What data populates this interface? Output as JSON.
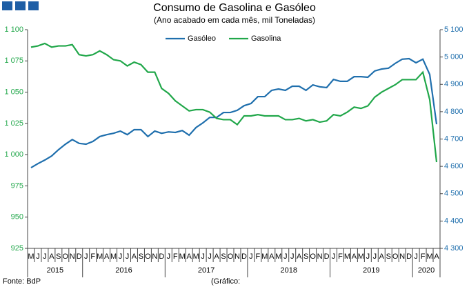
{
  "chart_data": {
    "type": "line",
    "title": "Consumo de Gasolina e Gasóleo",
    "subtitle": "(Ano acabado em cada mês,  mil Toneladas)",
    "categories": [
      "M",
      "J",
      "J",
      "A",
      "S",
      "O",
      "N",
      "D",
      "J",
      "F",
      "M",
      "A",
      "M",
      "J",
      "J",
      "A",
      "S",
      "O",
      "N",
      "D",
      "J",
      "F",
      "M",
      "A",
      "M",
      "J",
      "J",
      "A",
      "S",
      "O",
      "N",
      "D",
      "J",
      "F",
      "M",
      "A",
      "M",
      "J",
      "J",
      "A",
      "S",
      "O",
      "N",
      "D",
      "J",
      "F",
      "M",
      "A",
      "M",
      "J",
      "J",
      "A",
      "S",
      "O",
      "N",
      "D",
      "J",
      "F",
      "M",
      "A"
    ],
    "years": [
      "2015",
      "2016",
      "2017",
      "2018",
      "2019",
      "2020"
    ],
    "series": [
      {
        "name": "Gasóleo",
        "color": "#1f6fad",
        "axis": "y2",
        "values": [
          4595,
          4610,
          4623,
          4638,
          4661,
          4681,
          4698,
          4684,
          4681,
          4691,
          4709,
          4716,
          4721,
          4729,
          4716,
          4734,
          4734,
          4709,
          4729,
          4721,
          4726,
          4724,
          4731,
          4714,
          4742,
          4759,
          4779,
          4779,
          4797,
          4797,
          4805,
          4822,
          4830,
          4855,
          4855,
          4878,
          4883,
          4878,
          4893,
          4893,
          4878,
          4898,
          4891,
          4888,
          4918,
          4911,
          4911,
          4928,
          4928,
          4926,
          4949,
          4956,
          4959,
          4977,
          4992,
          4994,
          4979,
          4992,
          4936,
          4754
        ]
      },
      {
        "name": "Gasolina",
        "color": "#21a74a",
        "values": [
          1086,
          1087,
          1089,
          1086,
          1087,
          1087,
          1088,
          1080,
          1079,
          1080,
          1083,
          1080,
          1076,
          1075,
          1071,
          1074,
          1072,
          1066,
          1066,
          1053,
          1049,
          1043,
          1039,
          1035,
          1036,
          1036,
          1034,
          1029,
          1028,
          1028,
          1024,
          1031,
          1031,
          1032,
          1031,
          1031,
          1031,
          1028,
          1028,
          1029,
          1027,
          1028,
          1026,
          1027,
          1032,
          1031,
          1034,
          1038,
          1037,
          1039,
          1046,
          1050,
          1053,
          1056,
          1060,
          1060,
          1060,
          1066,
          1044,
          994
        ]
      }
    ],
    "ylim": [
      925,
      1100
    ],
    "yticks": [
      925,
      950,
      975,
      {
        "value": 1000,
        "label": "1 000"
      },
      {
        "value": 1025,
        "label": "1 025"
      },
      {
        "value": 1050,
        "label": "1 050"
      },
      {
        "value": 1075,
        "label": "1 075"
      },
      {
        "value": 1100,
        "label": "1 100"
      }
    ],
    "y2lim": [
      4300,
      5100
    ],
    "y2ticks": [
      {
        "value": 4300,
        "label": "4 300"
      },
      {
        "value": 4400,
        "label": "4 400"
      },
      {
        "value": 4500,
        "label": "4 500"
      },
      {
        "value": 4600,
        "label": "4 600"
      },
      {
        "value": 4700,
        "label": "4 700"
      },
      {
        "value": 4800,
        "label": "4 800"
      },
      {
        "value": 4900,
        "label": "4 900"
      },
      {
        "value": 5000,
        "label": "5 000"
      },
      {
        "value": 5100,
        "label": "5 100"
      }
    ],
    "left_axis_color": "#21a74a",
    "right_axis_color": "#1f6fad",
    "source": "Fonte: BdP",
    "credit": "(Gráfico:"
  }
}
